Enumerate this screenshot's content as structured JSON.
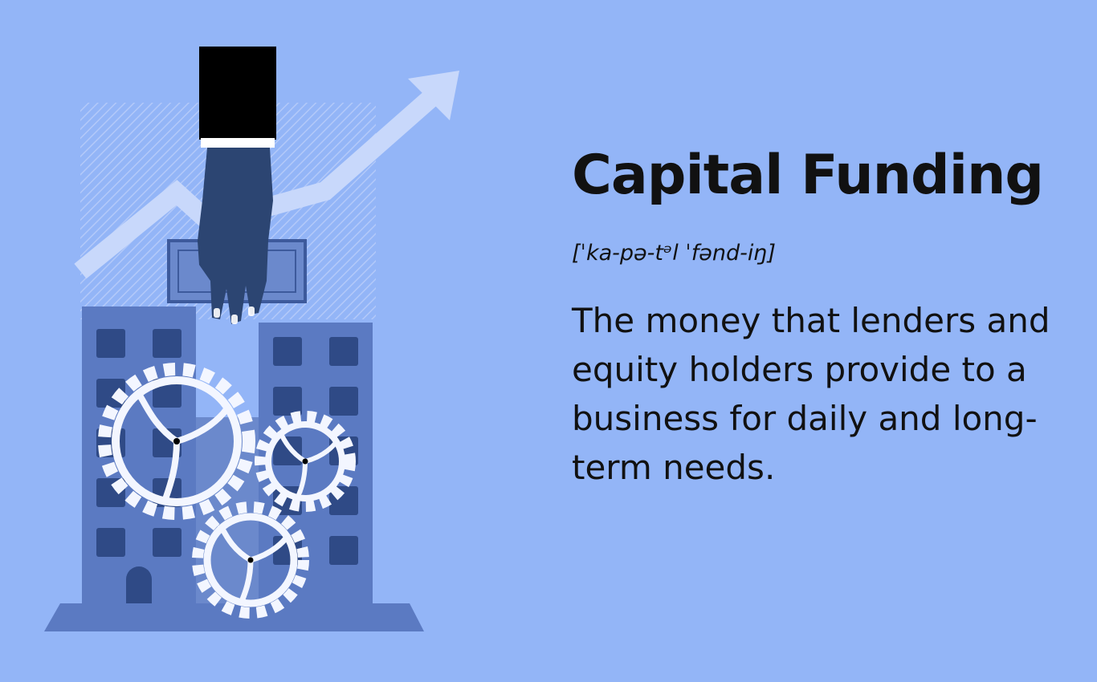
{
  "definition": {
    "term": "Capital Funding",
    "pronunciation": "[ˈka-pə-tᵊl ˈfənd-iŋ]",
    "meaning": "The money that lenders and equity holders provide to a business for daily and long-term needs."
  },
  "colors": {
    "background": "#93b5f7",
    "building": "#5b7ac2",
    "building_dark": "#3d5a9c",
    "window": "#2f4a86",
    "gear": "#f3f6ff",
    "arrow": "#c8d8fb",
    "hand": "#2c4572",
    "sleeve": "#000000",
    "text": "#111111"
  },
  "icons": [
    "buildings-icon",
    "gears-icon",
    "growth-arrow-icon",
    "hand-with-money-icon"
  ]
}
